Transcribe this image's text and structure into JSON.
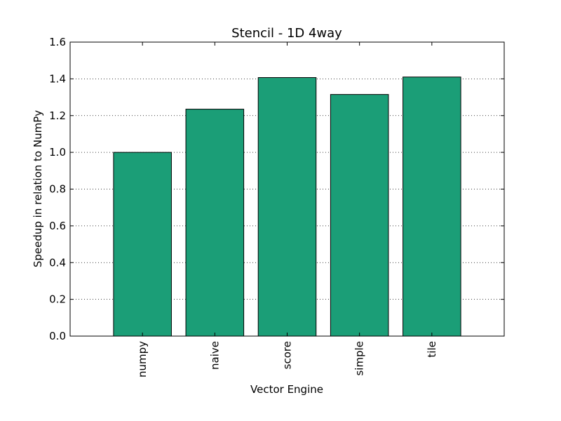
{
  "chart_data": {
    "type": "bar",
    "title": "Stencil - 1D 4way",
    "xlabel": "Vector Engine",
    "ylabel": "Speedup in relation to NumPy",
    "categories": [
      "numpy",
      "naive",
      "score",
      "simple",
      "tile"
    ],
    "values": [
      1.0,
      1.235,
      1.407,
      1.315,
      1.41
    ],
    "ylim": [
      0,
      1.6
    ],
    "yticks": [
      0.0,
      0.2,
      0.4,
      0.6,
      0.8,
      1.0,
      1.2,
      1.4,
      1.6
    ],
    "ytick_labels": [
      "0.0",
      "0.2",
      "0.4",
      "0.6",
      "0.8",
      "1.0",
      "1.2",
      "1.4",
      "1.6"
    ],
    "grid": "horizontal dotted",
    "bar_color": "#1b9e77",
    "edge_color": "#000000"
  }
}
